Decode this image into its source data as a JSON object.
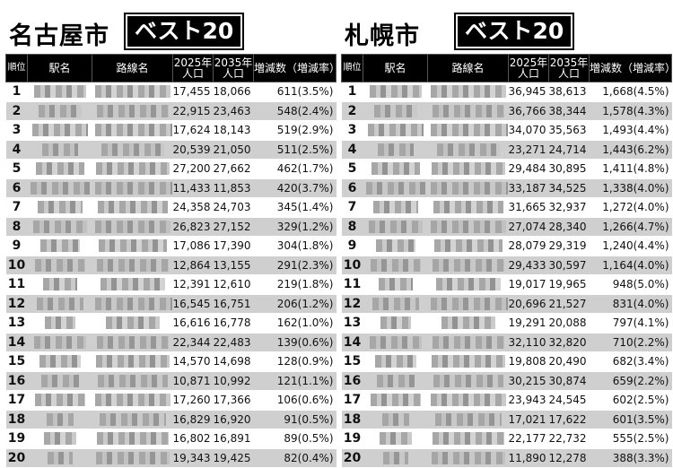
{
  "headers": {
    "rank": "順位",
    "station": "駅名",
    "line": "路線名",
    "pop2025": "2025年人口",
    "pop2035": "2035年人口",
    "change": "増減数（増減率）"
  },
  "nagoya": {
    "city": "名古屋市",
    "best": "ベスト20",
    "rows": [
      {
        "rank": "1",
        "p2025": "17,455",
        "p2035": "18,066",
        "change": "611(3.5%)"
      },
      {
        "rank": "2",
        "p2025": "22,915",
        "p2035": "23,463",
        "change": "548(2.4%)"
      },
      {
        "rank": "3",
        "p2025": "17,624",
        "p2035": "18,143",
        "change": "519(2.9%)"
      },
      {
        "rank": "4",
        "p2025": "20,539",
        "p2035": "21,050",
        "change": "511(2.5%)"
      },
      {
        "rank": "5",
        "p2025": "27,200",
        "p2035": "27,662",
        "change": "462(1.7%)"
      },
      {
        "rank": "6",
        "p2025": "11,433",
        "p2035": "11,853",
        "change": "420(3.7%)"
      },
      {
        "rank": "7",
        "p2025": "24,358",
        "p2035": "24,703",
        "change": "345(1.4%)"
      },
      {
        "rank": "8",
        "p2025": "26,823",
        "p2035": "27,152",
        "change": "329(1.2%)"
      },
      {
        "rank": "9",
        "p2025": "17,086",
        "p2035": "17,390",
        "change": "304(1.8%)"
      },
      {
        "rank": "10",
        "p2025": "12,864",
        "p2035": "13,155",
        "change": "291(2.3%)"
      },
      {
        "rank": "11",
        "p2025": "12,391",
        "p2035": "12,610",
        "change": "219(1.8%)"
      },
      {
        "rank": "12",
        "p2025": "16,545",
        "p2035": "16,751",
        "change": "206(1.2%)"
      },
      {
        "rank": "13",
        "p2025": "16,616",
        "p2035": "16,778",
        "change": "162(1.0%)"
      },
      {
        "rank": "14",
        "p2025": "22,344",
        "p2035": "22,483",
        "change": "139(0.6%)"
      },
      {
        "rank": "15",
        "p2025": "14,570",
        "p2035": "14,698",
        "change": "128(0.9%)"
      },
      {
        "rank": "16",
        "p2025": "10,871",
        "p2035": "10,992",
        "change": "121(1.1%)"
      },
      {
        "rank": "17",
        "p2025": "17,260",
        "p2035": "17,366",
        "change": "106(0.6%)"
      },
      {
        "rank": "18",
        "p2025": "16,829",
        "p2035": "16,920",
        "change": "91(0.5%)"
      },
      {
        "rank": "19",
        "p2025": "16,802",
        "p2035": "16,891",
        "change": "89(0.5%)"
      },
      {
        "rank": "20",
        "p2025": "19,343",
        "p2035": "19,425",
        "change": "82(0.4%)"
      }
    ]
  },
  "sapporo": {
    "city": "札幌市",
    "best": "ベスト20",
    "rows": [
      {
        "rank": "1",
        "p2025": "36,945",
        "p2035": "38,613",
        "change": "1,668(4.5%)"
      },
      {
        "rank": "2",
        "p2025": "36,766",
        "p2035": "38,344",
        "change": "1,578(4.3%)"
      },
      {
        "rank": "3",
        "p2025": "34,070",
        "p2035": "35,563",
        "change": "1,493(4.4%)"
      },
      {
        "rank": "4",
        "p2025": "23,271",
        "p2035": "24,714",
        "change": "1,443(6.2%)"
      },
      {
        "rank": "5",
        "p2025": "29,484",
        "p2035": "30,895",
        "change": "1,411(4.8%)"
      },
      {
        "rank": "6",
        "p2025": "33,187",
        "p2035": "34,525",
        "change": "1,338(4.0%)"
      },
      {
        "rank": "7",
        "p2025": "31,665",
        "p2035": "32,937",
        "change": "1,272(4.0%)"
      },
      {
        "rank": "8",
        "p2025": "27,074",
        "p2035": "28,340",
        "change": "1,266(4.7%)"
      },
      {
        "rank": "9",
        "p2025": "28,079",
        "p2035": "29,319",
        "change": "1,240(4.4%)"
      },
      {
        "rank": "10",
        "p2025": "29,433",
        "p2035": "30,597",
        "change": "1,164(4.0%)"
      },
      {
        "rank": "11",
        "p2025": "19,017",
        "p2035": "19,965",
        "change": "948(5.0%)"
      },
      {
        "rank": "12",
        "p2025": "20,696",
        "p2035": "21,527",
        "change": "831(4.0%)"
      },
      {
        "rank": "13",
        "p2025": "19,291",
        "p2035": "20,088",
        "change": "797(4.1%)"
      },
      {
        "rank": "14",
        "p2025": "32,110",
        "p2035": "32,820",
        "change": "710(2.2%)"
      },
      {
        "rank": "15",
        "p2025": "19,808",
        "p2035": "20,490",
        "change": "682(3.4%)"
      },
      {
        "rank": "16",
        "p2025": "30,215",
        "p2035": "30,874",
        "change": "659(2.2%)"
      },
      {
        "rank": "17",
        "p2025": "23,943",
        "p2035": "24,545",
        "change": "602(2.5%)"
      },
      {
        "rank": "18",
        "p2025": "17,021",
        "p2035": "17,622",
        "change": "601(3.5%)"
      },
      {
        "rank": "19",
        "p2025": "22,177",
        "p2035": "22,732",
        "change": "555(2.5%)"
      },
      {
        "rank": "20",
        "p2025": "11,890",
        "p2035": "12,278",
        "change": "388(3.3%)"
      }
    ]
  }
}
